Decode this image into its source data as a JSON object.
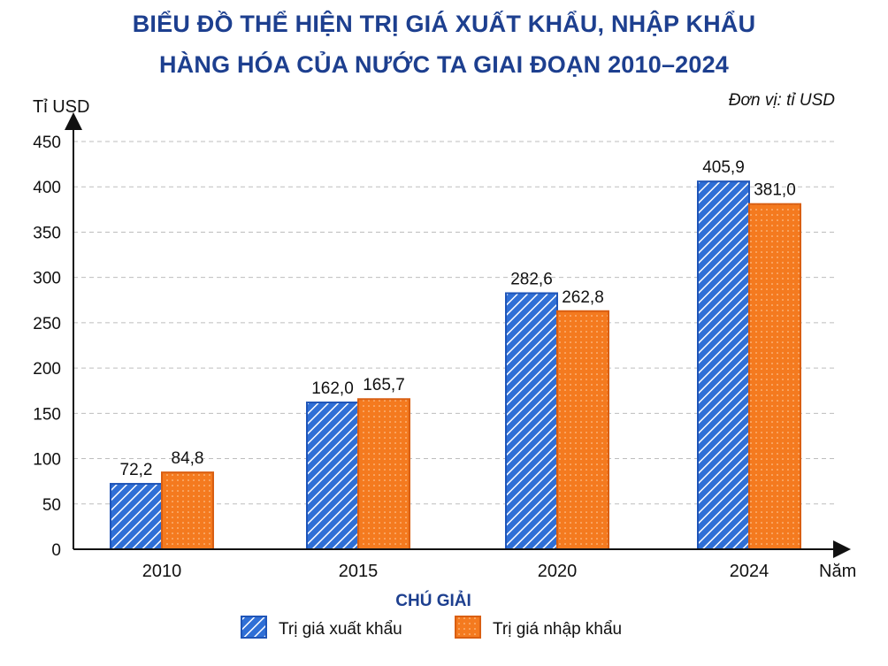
{
  "chart_data": {
    "type": "bar",
    "title_line1": "BIỂU ĐỒ THỂ HIỆN TRỊ GIÁ XUẤT KHẨU, NHẬP KHẨU",
    "title_line2": "HÀNG HÓA CỦA NƯỚC TA GIAI ĐOẠN 2010–2024",
    "unit_note": "Đơn vị: tỉ USD",
    "ylabel": "Tỉ USD",
    "xlabel": "Năm",
    "categories": [
      "2010",
      "2015",
      "2020",
      "2024"
    ],
    "ylim": [
      0,
      450
    ],
    "yticks": [
      0,
      50,
      100,
      150,
      200,
      250,
      300,
      350,
      400,
      450
    ],
    "grid": "horizontal dashed",
    "series": [
      {
        "name": "Trị giá xuất khẩu",
        "values": [
          72.2,
          162.0,
          282.6,
          405.9
        ],
        "labels": [
          "72,2",
          "162,0",
          "282,6",
          "405,9"
        ],
        "color": "#2f6fd6",
        "pattern": "diagonal-stripes"
      },
      {
        "name": "Trị giá nhập khẩu",
        "values": [
          84.8,
          165.7,
          262.8,
          381.0
        ],
        "labels": [
          "84,8",
          "165,7",
          "262,8",
          "381,0"
        ],
        "color": "#f47a1f",
        "pattern": "dots"
      }
    ],
    "legend_title": "CHÚ GIẢI",
    "legend_position": "bottom"
  }
}
